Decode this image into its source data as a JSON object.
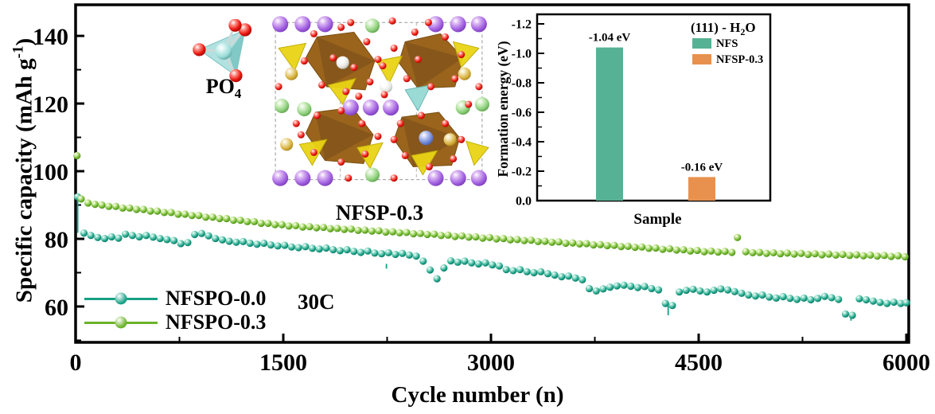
{
  "figure": {
    "main": {
      "xlabel": "Cycle number (n)",
      "ylabel": {
        "pre": "Specific capacity (mAh g",
        "sup": "-1",
        "post": ")"
      },
      "annotation": "30C"
    },
    "po4_label": {
      "text": "PO",
      "sub": "4"
    },
    "crystal_label": "NFSP-0.3"
  },
  "chart_data": [
    {
      "type": "scatter",
      "xlabel": "Cycle number (n)",
      "ylabel": "Specific capacity (mAh g-1)",
      "xlim": [
        0,
        6000
      ],
      "ylim": [
        49.4,
        149.2
      ],
      "x_ticks": [
        0,
        1500,
        3000,
        4500,
        6000
      ],
      "y_ticks": [
        60,
        80,
        100,
        120,
        140
      ],
      "grid": false,
      "legend_position": "lower-left",
      "annotation": "30C",
      "series": [
        {
          "name": "NFSPO-0.0",
          "color": "#18A085",
          "points": [
            [
              15,
              92.4
            ],
            [
              60,
              81.7
            ],
            [
              110,
              81.0
            ],
            [
              160,
              80.4
            ],
            [
              210,
              80.1
            ],
            [
              260,
              80.6
            ],
            [
              310,
              80.2
            ],
            [
              360,
              81.4
            ],
            [
              410,
              81.0
            ],
            [
              460,
              80.6
            ],
            [
              510,
              81.0
            ],
            [
              560,
              80.5
            ],
            [
              610,
              80.1
            ],
            [
              660,
              79.8
            ],
            [
              710,
              79.5
            ],
            [
              760,
              78.6
            ],
            [
              810,
              78.9
            ],
            [
              860,
              81.3
            ],
            [
              910,
              81.6
            ],
            [
              960,
              80.9
            ],
            [
              1010,
              80.1
            ],
            [
              1060,
              79.7
            ],
            [
              1110,
              79.3
            ],
            [
              1160,
              79.0
            ],
            [
              1210,
              79.2
            ],
            [
              1260,
              78.7
            ],
            [
              1310,
              78.4
            ],
            [
              1360,
              78.7
            ],
            [
              1410,
              78.2
            ],
            [
              1460,
              77.9
            ],
            [
              1510,
              78.1
            ],
            [
              1560,
              77.6
            ],
            [
              1610,
              77.4
            ],
            [
              1660,
              77.7
            ],
            [
              1710,
              77.2
            ],
            [
              1760,
              77.0
            ],
            [
              1810,
              77.3
            ],
            [
              1860,
              76.8
            ],
            [
              1910,
              76.5
            ],
            [
              1960,
              76.8
            ],
            [
              2010,
              76.3
            ],
            [
              2060,
              76.0
            ],
            [
              2110,
              76.4
            ],
            [
              2160,
              75.8
            ],
            [
              2210,
              75.6
            ],
            [
              2260,
              75.9
            ],
            [
              2310,
              75.4
            ],
            [
              2360,
              75.7
            ],
            [
              2410,
              75.2
            ],
            [
              2460,
              74.9
            ],
            [
              2510,
              73.4
            ],
            [
              2560,
              70.8
            ],
            [
              2610,
              68.2
            ],
            [
              2660,
              71.4
            ],
            [
              2710,
              73.5
            ],
            [
              2760,
              73.1
            ],
            [
              2810,
              73.4
            ],
            [
              2860,
              72.9
            ],
            [
              2910,
              72.6
            ],
            [
              2960,
              72.9
            ],
            [
              3010,
              72.3
            ],
            [
              3060,
              72.0
            ],
            [
              3110,
              70.9
            ],
            [
              3160,
              70.6
            ],
            [
              3210,
              70.9
            ],
            [
              3260,
              70.3
            ],
            [
              3310,
              70.0
            ],
            [
              3360,
              70.3
            ],
            [
              3410,
              69.7
            ],
            [
              3460,
              69.3
            ],
            [
              3510,
              68.8
            ],
            [
              3560,
              69.0
            ],
            [
              3610,
              68.4
            ],
            [
              3660,
              67.9
            ],
            [
              3710,
              65.3
            ],
            [
              3760,
              64.6
            ],
            [
              3810,
              65.2
            ],
            [
              3860,
              65.7
            ],
            [
              3910,
              66.1
            ],
            [
              3960,
              66.3
            ],
            [
              4010,
              66.0
            ],
            [
              4060,
              65.6
            ],
            [
              4110,
              65.9
            ],
            [
              4160,
              65.3
            ],
            [
              4210,
              64.9
            ],
            [
              4260,
              60.9
            ],
            [
              4310,
              60.3
            ],
            [
              4360,
              64.3
            ],
            [
              4410,
              64.8
            ],
            [
              4460,
              65.1
            ],
            [
              4510,
              64.6
            ],
            [
              4560,
              64.3
            ],
            [
              4610,
              64.8
            ],
            [
              4660,
              65.2
            ],
            [
              4710,
              64.9
            ],
            [
              4760,
              64.4
            ],
            [
              4810,
              63.9
            ],
            [
              4860,
              63.4
            ],
            [
              4910,
              63.1
            ],
            [
              4960,
              63.4
            ],
            [
              5010,
              62.8
            ],
            [
              5060,
              62.5
            ],
            [
              5110,
              62.9
            ],
            [
              5160,
              62.4
            ],
            [
              5210,
              62.1
            ],
            [
              5260,
              62.5
            ],
            [
              5310,
              62.0
            ],
            [
              5360,
              62.4
            ],
            [
              5410,
              63.0
            ],
            [
              5460,
              62.6
            ],
            [
              5510,
              62.1
            ],
            [
              5560,
              57.8
            ],
            [
              5610,
              57.4
            ],
            [
              5660,
              62.3
            ],
            [
              5710,
              62.0
            ],
            [
              5760,
              61.6
            ],
            [
              5810,
              61.2
            ],
            [
              5860,
              60.9
            ],
            [
              5910,
              61.3
            ],
            [
              5960,
              60.9
            ],
            [
              6000,
              61.1
            ]
          ]
        },
        {
          "name": "NFSPO-0.3",
          "color": "#6BB32B",
          "points": [
            [
              10,
              104.6
            ],
            [
              40,
              91.8
            ],
            [
              90,
              90.6
            ],
            [
              140,
              90.2
            ],
            [
              190,
              90.0
            ],
            [
              240,
              89.6
            ],
            [
              290,
              89.6
            ],
            [
              340,
              89.1
            ],
            [
              390,
              89.1
            ],
            [
              440,
              88.7
            ],
            [
              490,
              88.7
            ],
            [
              540,
              88.2
            ],
            [
              590,
              88.2
            ],
            [
              640,
              87.8
            ],
            [
              690,
              87.8
            ],
            [
              740,
              87.3
            ],
            [
              790,
              87.3
            ],
            [
              840,
              86.9
            ],
            [
              890,
              86.9
            ],
            [
              940,
              86.4
            ],
            [
              990,
              86.4
            ],
            [
              1040,
              86.0
            ],
            [
              1090,
              86.0
            ],
            [
              1140,
              85.5
            ],
            [
              1190,
              85.5
            ],
            [
              1240,
              85.1
            ],
            [
              1290,
              85.1
            ],
            [
              1340,
              84.6
            ],
            [
              1390,
              84.6
            ],
            [
              1440,
              84.2
            ],
            [
              1490,
              84.2
            ],
            [
              1540,
              83.8
            ],
            [
              1590,
              83.9
            ],
            [
              1640,
              83.5
            ],
            [
              1690,
              83.6
            ],
            [
              1740,
              83.3
            ],
            [
              1790,
              83.4
            ],
            [
              1840,
              83.0
            ],
            [
              1890,
              83.1
            ],
            [
              1940,
              82.8
            ],
            [
              1990,
              82.9
            ],
            [
              2040,
              82.5
            ],
            [
              2090,
              82.6
            ],
            [
              2140,
              82.3
            ],
            [
              2190,
              82.4
            ],
            [
              2240,
              82.0
            ],
            [
              2290,
              82.1
            ],
            [
              2340,
              81.8
            ],
            [
              2390,
              81.9
            ],
            [
              2440,
              81.5
            ],
            [
              2490,
              81.6
            ],
            [
              2540,
              81.3
            ],
            [
              2590,
              81.4
            ],
            [
              2640,
              81.0
            ],
            [
              2690,
              81.1
            ],
            [
              2740,
              80.7
            ],
            [
              2790,
              80.9
            ],
            [
              2840,
              80.5
            ],
            [
              2890,
              80.6
            ],
            [
              2940,
              80.2
            ],
            [
              2990,
              80.4
            ],
            [
              3040,
              80.0
            ],
            [
              3090,
              80.1
            ],
            [
              3140,
              79.7
            ],
            [
              3190,
              79.8
            ],
            [
              3240,
              79.5
            ],
            [
              3290,
              79.6
            ],
            [
              3340,
              79.2
            ],
            [
              3390,
              79.3
            ],
            [
              3440,
              79.0
            ],
            [
              3490,
              79.1
            ],
            [
              3540,
              78.7
            ],
            [
              3590,
              78.8
            ],
            [
              3640,
              78.5
            ],
            [
              3690,
              78.6
            ],
            [
              3740,
              78.2
            ],
            [
              3790,
              78.3
            ],
            [
              3840,
              78.0
            ],
            [
              3890,
              78.1
            ],
            [
              3940,
              77.7
            ],
            [
              3990,
              77.8
            ],
            [
              4040,
              77.5
            ],
            [
              4090,
              77.6
            ],
            [
              4140,
              77.2
            ],
            [
              4190,
              77.3
            ],
            [
              4240,
              76.9
            ],
            [
              4290,
              77.1
            ],
            [
              4340,
              76.7
            ],
            [
              4390,
              76.8
            ],
            [
              4440,
              76.4
            ],
            [
              4490,
              76.6
            ],
            [
              4540,
              76.2
            ],
            [
              4590,
              76.4
            ],
            [
              4640,
              76.1
            ],
            [
              4690,
              76.3
            ],
            [
              4740,
              76.0
            ],
            [
              4780,
              80.4
            ],
            [
              4840,
              76.2
            ],
            [
              4890,
              75.9
            ],
            [
              4940,
              76.0
            ],
            [
              4990,
              75.7
            ],
            [
              5040,
              75.9
            ],
            [
              5090,
              75.6
            ],
            [
              5140,
              75.8
            ],
            [
              5190,
              75.5
            ],
            [
              5240,
              75.7
            ],
            [
              5290,
              75.4
            ],
            [
              5340,
              75.6
            ],
            [
              5390,
              75.3
            ],
            [
              5440,
              75.5
            ],
            [
              5490,
              75.2
            ],
            [
              5540,
              75.4
            ],
            [
              5590,
              75.1
            ],
            [
              5640,
              75.3
            ],
            [
              5690,
              75.0
            ],
            [
              5740,
              75.2
            ],
            [
              5790,
              74.9
            ],
            [
              5840,
              75.1
            ],
            [
              5890,
              74.8
            ],
            [
              5940,
              75.0
            ],
            [
              5990,
              74.7
            ]
          ]
        }
      ],
      "droplines": [
        {
          "x": 15,
          "y1": 92.4,
          "y2": 81.8
        },
        {
          "x": 2245,
          "y1": 72.6,
          "y2": 71.2
        },
        {
          "x": 4280,
          "y1": 60.2,
          "y2": 57.4
        },
        {
          "x": 5600,
          "y1": 57.2,
          "y2": 55.8
        }
      ]
    },
    {
      "type": "bar",
      "title": {
        "pre": "(111) - H",
        "sub": "2",
        "post": "O"
      },
      "xlabel": "Sample",
      "ylabel": "Formation energy (eV)",
      "ylim": [
        0.0,
        -1.2
      ],
      "y_ticks": [
        "-1.2",
        "-1.0",
        "-0.8",
        "-0.6",
        "-0.4",
        "-0.2",
        "0.0"
      ],
      "axis_inverted": true,
      "legend_position": "upper-right",
      "bars": [
        {
          "name": "NFS",
          "value": -1.04,
          "label": "-1.04 eV",
          "color": "#56B295"
        },
        {
          "name": "NFSP-0.3",
          "value": -0.16,
          "label": "-0.16 eV",
          "color": "#E8914E"
        }
      ],
      "legend": [
        {
          "label": "NFS",
          "color": "#56B295"
        },
        {
          "label": "NFSP-0.3",
          "color": "#E8914E"
        }
      ]
    }
  ]
}
